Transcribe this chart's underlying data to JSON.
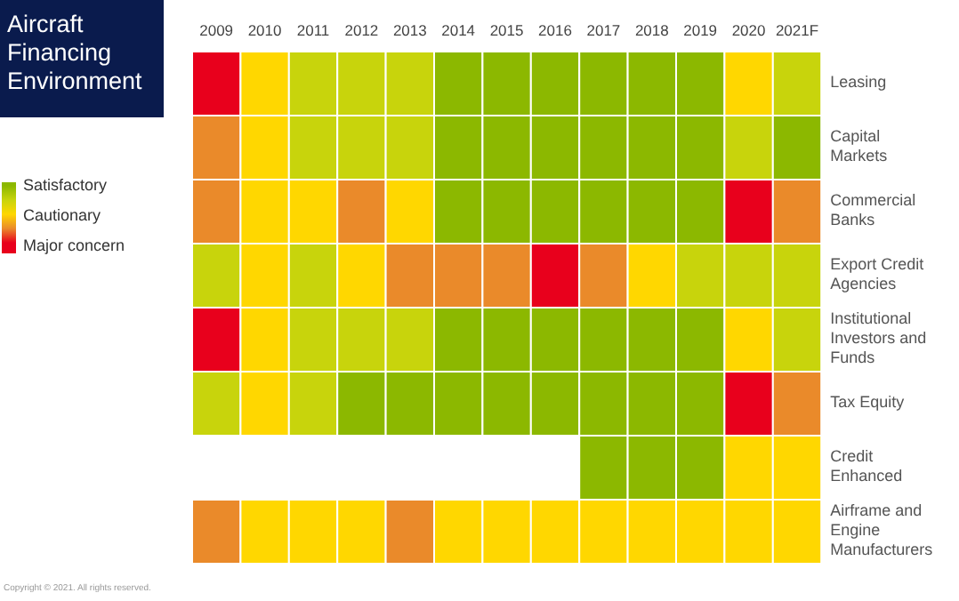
{
  "chart_data": {
    "type": "heatmap",
    "title": "Aircraft Financing Environment",
    "categories": [
      "2009",
      "2010",
      "2011",
      "2012",
      "2013",
      "2014",
      "2015",
      "2016",
      "2017",
      "2018",
      "2019",
      "2020",
      "2021F"
    ],
    "y_categories": [
      "Leasing",
      "Capital Markets",
      "Commercial Banks",
      "Export Credit Agencies",
      "Institutional Investors and Funds",
      "Tax Equity",
      "Credit Enhanced",
      "Airframe and Engine Manufacturers"
    ],
    "cells": [
      [
        3,
        2,
        1.5,
        1.5,
        1.5,
        1,
        1,
        1,
        1,
        1,
        1,
        2,
        1.5
      ],
      [
        2.5,
        2,
        1.5,
        1.5,
        1.5,
        1,
        1,
        1,
        1,
        1,
        1,
        1.5,
        1
      ],
      [
        2.5,
        2,
        2,
        2.5,
        2,
        1,
        1,
        1,
        1,
        1,
        1,
        3,
        2.5
      ],
      [
        1.5,
        2,
        1.5,
        2,
        2.5,
        2.5,
        2.5,
        3,
        2.5,
        2,
        1.5,
        1.5,
        1.5
      ],
      [
        3,
        2,
        1.5,
        1.5,
        1.5,
        1,
        1,
        1,
        1,
        1,
        1,
        2,
        1.5
      ],
      [
        1.5,
        2,
        1.5,
        1,
        1,
        1,
        1,
        1,
        1,
        1,
        1,
        3,
        2.5
      ],
      [
        null,
        null,
        null,
        null,
        null,
        null,
        null,
        null,
        1,
        1,
        1,
        2,
        2
      ],
      [
        2.5,
        2,
        2,
        2,
        2.5,
        2,
        2,
        2,
        2,
        2,
        2,
        2,
        2
      ]
    ],
    "clim": [
      1,
      3
    ],
    "cticks": [
      {
        "value": 1,
        "label": "Satisfactory"
      },
      {
        "value": 2,
        "label": "Cautionary"
      },
      {
        "value": 3,
        "label": "Major concern"
      }
    ],
    "annotations": [
      "Copyright © 2021. All rights reserved."
    ]
  }
}
